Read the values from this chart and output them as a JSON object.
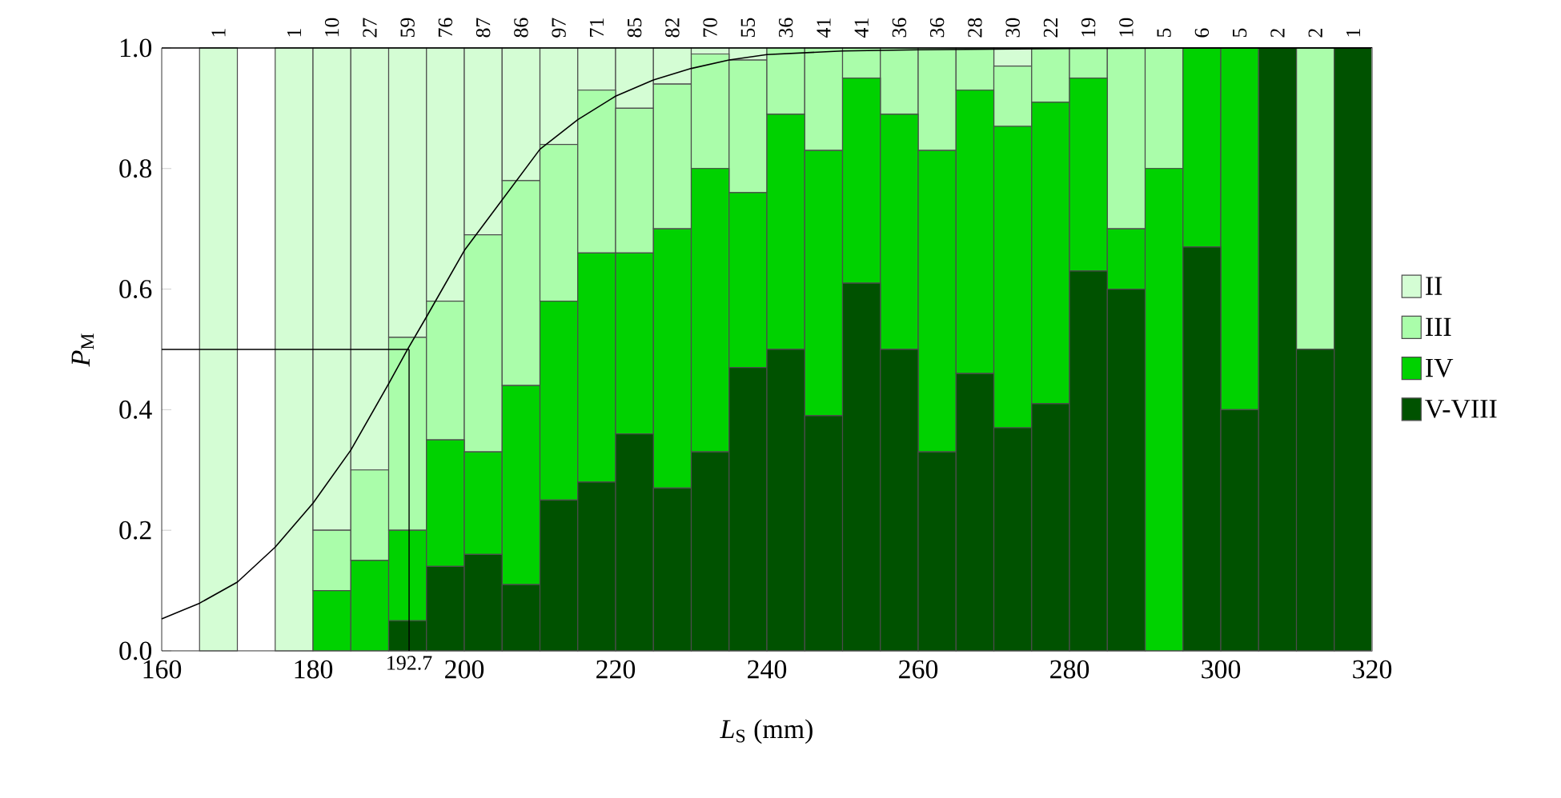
{
  "chart_data": {
    "type": "bar",
    "stacked": true,
    "xlabel": "*L*$_{S}$ (mm)",
    "ylabel": "*P*$_{M}$",
    "x": [
      167.5,
      172.5,
      177.5,
      182.5,
      187.5,
      192.5,
      197.5,
      202.5,
      207.5,
      212.5,
      217.5,
      222.5,
      227.5,
      232.5,
      237.5,
      242.5,
      247.5,
      252.5,
      257.5,
      262.5,
      267.5,
      272.5,
      277.5,
      282.5,
      287.5,
      292.5,
      297.5,
      302.5,
      307.5,
      312.5,
      317.5
    ],
    "series": [
      {
        "name": "V-VIII",
        "color": "#005200",
        "values": [
          0,
          null,
          0,
          0,
          0,
          0.05,
          0.14,
          0.16,
          0.11,
          0.25,
          0.28,
          0.36,
          0.27,
          0.33,
          0.47,
          0.5,
          0.39,
          0.61,
          0.5,
          0.33,
          0.46,
          0.37,
          0.41,
          0.63,
          0.6,
          0,
          0.67,
          0.4,
          1,
          0.5,
          1
        ]
      },
      {
        "name": "IV",
        "color": "#00d200",
        "values": [
          0,
          null,
          0,
          0.1,
          0.15,
          0.15,
          0.21,
          0.17,
          0.33,
          0.33,
          0.38,
          0.3,
          0.43,
          0.47,
          0.29,
          0.39,
          0.44,
          0.34,
          0.39,
          0.5,
          0.47,
          0.5,
          0.5,
          0.32,
          0.1,
          0.8,
          0.33,
          0.6,
          0,
          0,
          0
        ]
      },
      {
        "name": "III",
        "color": "#aafdaa",
        "values": [
          0,
          null,
          0,
          0.1,
          0.15,
          0.32,
          0.23,
          0.36,
          0.34,
          0.26,
          0.27,
          0.24,
          0.24,
          0.19,
          0.22,
          0.11,
          0.17,
          0.05,
          0.11,
          0.17,
          0.07,
          0.1,
          0.09,
          0.05,
          0.3,
          0.2,
          0,
          0,
          0,
          0.5,
          0
        ]
      },
      {
        "name": "II",
        "color": "#d4fdd4",
        "values": [
          1,
          null,
          1,
          0.8,
          0.7,
          0.48,
          0.42,
          0.31,
          0.22,
          0.16,
          0.07,
          0.1,
          0.06,
          0.01,
          0.02,
          0,
          0,
          0,
          0,
          0,
          0,
          0.03,
          0,
          0,
          0,
          0,
          0,
          0,
          0,
          0,
          0
        ]
      },
      {
        "type": "line",
        "color": "#000000",
        "x": [
          160,
          165,
          170,
          175,
          180,
          185,
          190,
          192.5,
          195,
          200,
          205,
          210,
          215,
          220,
          225,
          230,
          235,
          240,
          250,
          260,
          280,
          300,
          320
        ],
        "values": [
          0.053,
          0.079,
          0.114,
          0.172,
          0.245,
          0.333,
          0.443,
          0.5,
          0.554,
          0.664,
          0.748,
          0.832,
          0.881,
          0.92,
          0.947,
          0.966,
          0.98,
          0.989,
          0.995,
          0.997,
          0.999,
          1.0,
          1.0
        ]
      }
    ],
    "xlim": [
      160,
      320
    ],
    "xticks": [
      160,
      180,
      200,
      220,
      240,
      260,
      280,
      300,
      320
    ],
    "ylim": [
      0,
      1
    ],
    "yticks": [
      {
        "value": 0,
        "label": "0.0"
      },
      0.2,
      0.4,
      0.6,
      0.8,
      {
        "value": 1,
        "label": "1.0"
      }
    ],
    "annotations": [
      {
        "text": "1",
        "x": 167.5,
        "y": 1
      },
      {
        "text": "1",
        "x": 177.5,
        "y": 1
      },
      {
        "text": "10",
        "x": 182.5,
        "y": 1
      },
      {
        "text": "27",
        "x": 187.5,
        "y": 1
      },
      {
        "text": "59",
        "x": 192.5,
        "y": 1
      },
      {
        "text": "76",
        "x": 197.5,
        "y": 1
      },
      {
        "text": "87",
        "x": 202.5,
        "y": 1
      },
      {
        "text": "86",
        "x": 207.5,
        "y": 1
      },
      {
        "text": "97",
        "x": 212.5,
        "y": 1
      },
      {
        "text": "71",
        "x": 217.5,
        "y": 1
      },
      {
        "text": "85",
        "x": 222.5,
        "y": 1
      },
      {
        "text": "82",
        "x": 227.5,
        "y": 1
      },
      {
        "text": "70",
        "x": 232.5,
        "y": 1
      },
      {
        "text": "55",
        "x": 237.5,
        "y": 1
      },
      {
        "text": "36",
        "x": 242.5,
        "y": 1
      },
      {
        "text": "41",
        "x": 247.5,
        "y": 1
      },
      {
        "text": "41",
        "x": 252.5,
        "y": 1
      },
      {
        "text": "36",
        "x": 257.5,
        "y": 1
      },
      {
        "text": "36",
        "x": 262.5,
        "y": 1
      },
      {
        "text": "28",
        "x": 267.5,
        "y": 1
      },
      {
        "text": "30",
        "x": 272.5,
        "y": 1
      },
      {
        "text": "22",
        "x": 277.5,
        "y": 1
      },
      {
        "text": "19",
        "x": 282.5,
        "y": 1
      },
      {
        "text": "10",
        "x": 287.5,
        "y": 1
      },
      {
        "text": "5",
        "x": 292.5,
        "y": 1
      },
      {
        "text": "6",
        "x": 297.5,
        "y": 1
      },
      {
        "text": "5",
        "x": 302.5,
        "y": 1
      },
      {
        "text": "2",
        "x": 307.5,
        "y": 1
      },
      {
        "text": "2",
        "x": 312.5,
        "y": 1
      },
      {
        "text": "1",
        "x": 317.5,
        "y": 1
      }
    ],
    "ref_lines": [
      {
        "axis": "x",
        "value": 192.7,
        "label": "192.7",
        "color": "#000000"
      },
      {
        "axis": "y",
        "value": 0.5,
        "color": "#000000"
      }
    ],
    "legend": "right"
  }
}
